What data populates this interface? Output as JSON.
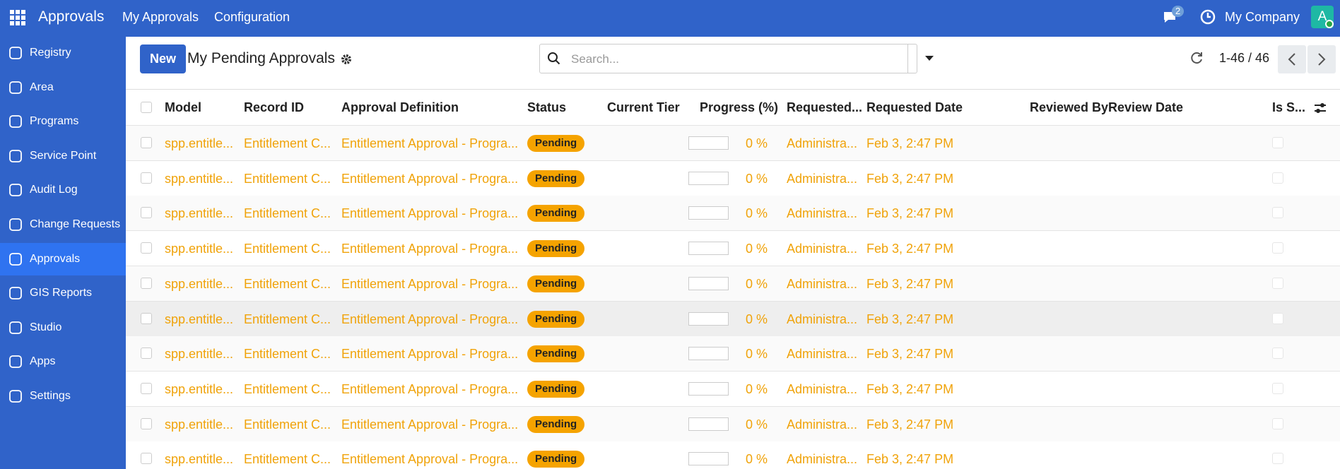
{
  "navbar": {
    "app": "Approvals",
    "menus": [
      "My Approvals",
      "Configuration"
    ],
    "messages": "2",
    "company": "My Company",
    "avatar": "A"
  },
  "sidebar": [
    "Registry",
    "Area",
    "Programs",
    "Service Point",
    "Audit Log",
    "Change Requests",
    "Approvals",
    "GIS Reports",
    "Studio",
    "Apps",
    "Settings"
  ],
  "control_panel": {
    "new_button": "New",
    "title": "My Pending Approvals",
    "search_placeholder": "Search...",
    "pager": "1-46 / 46"
  },
  "table": {
    "headers": [
      "Model",
      "Record ID",
      "Approval Definition",
      "Status",
      "Current Tier",
      "Progress (%)",
      "Requested...",
      "Requested Date",
      "Reviewed By",
      "Review Date",
      "Is S..."
    ],
    "rows": [
      [
        "spp.entitle...",
        "Entitlement C...",
        "Entitlement Approval - Progra...",
        "Pending",
        "0 %",
        "Administra...",
        "Feb 3, 2:47 PM"
      ],
      [
        "spp.entitle...",
        "Entitlement C...",
        "Entitlement Approval - Progra...",
        "Pending",
        "0 %",
        "Administra...",
        "Feb 3, 2:47 PM"
      ],
      [
        "spp.entitle...",
        "Entitlement C...",
        "Entitlement Approval - Progra...",
        "Pending",
        "0 %",
        "Administra...",
        "Feb 3, 2:47 PM"
      ],
      [
        "spp.entitle...",
        "Entitlement C...",
        "Entitlement Approval - Progra...",
        "Pending",
        "0 %",
        "Administra...",
        "Feb 3, 2:47 PM"
      ],
      [
        "spp.entitle...",
        "Entitlement C...",
        "Entitlement Approval - Progra...",
        "Pending",
        "0 %",
        "Administra...",
        "Feb 3, 2:47 PM"
      ],
      [
        "spp.entitle...",
        "Entitlement C...",
        "Entitlement Approval - Progra...",
        "Pending",
        "0 %",
        "Administra...",
        "Feb 3, 2:47 PM"
      ],
      [
        "spp.entitle...",
        "Entitlement C...",
        "Entitlement Approval - Progra...",
        "Pending",
        "0 %",
        "Administra...",
        "Feb 3, 2:47 PM"
      ],
      [
        "spp.entitle...",
        "Entitlement C...",
        "Entitlement Approval - Progra...",
        "Pending",
        "0 %",
        "Administra...",
        "Feb 3, 2:47 PM"
      ],
      [
        "spp.entitle...",
        "Entitlement C...",
        "Entitlement Approval - Progra...",
        "Pending",
        "0 %",
        "Administra...",
        "Feb 3, 2:47 PM"
      ],
      [
        "spp.entitle...",
        "Entitlement C...",
        "Entitlement Approval - Progra...",
        "Pending",
        "0 %",
        "Administra...",
        "Feb 3, 2:47 PM"
      ]
    ]
  }
}
